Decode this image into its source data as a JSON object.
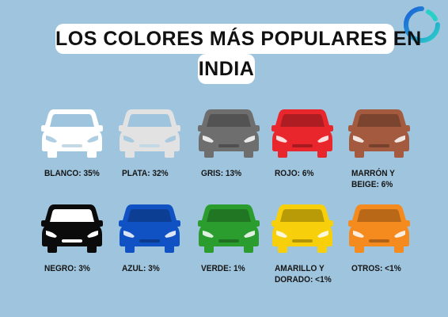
{
  "title_line1": "LOS COLORES MÁS POPULARES EN",
  "title_line2": "INDIA",
  "icons": {
    "logo": "ring-logo-icon",
    "car": "car-front-icon"
  },
  "chart_data": {
    "type": "pictograph",
    "title": "LOS COLORES MÁS POPULARES EN INDIA",
    "items": [
      {
        "label_lines": [
          "BLANCO: 35%"
        ],
        "value": 35,
        "color": "#ffffff"
      },
      {
        "label_lines": [
          "PLATA: 32%"
        ],
        "value": 32,
        "color": "#e2e2e2"
      },
      {
        "label_lines": [
          "GRIS: 13%"
        ],
        "value": 13,
        "color": "#6e6e6e"
      },
      {
        "label_lines": [
          "ROJO: 6%"
        ],
        "value": 6,
        "color": "#e8262c"
      },
      {
        "label_lines": [
          "MARRÓN Y",
          "BEIGE: 6%"
        ],
        "value": 6,
        "color": "#a35a3f"
      },
      {
        "label_lines": [
          "NEGRO: 3%"
        ],
        "value": 3,
        "color": "#0b0b0b"
      },
      {
        "label_lines": [
          "AZUL: 3%"
        ],
        "value": 3,
        "color": "#1052c4"
      },
      {
        "label_lines": [
          "VERDE: 1%"
        ],
        "value": 1,
        "color": "#2b9d2e"
      },
      {
        "label_lines": [
          "AMARILLO Y",
          "DORADO: <1%"
        ],
        "value": "<1",
        "color": "#f7cf0a"
      },
      {
        "label_lines": [
          "OTROS: <1%"
        ],
        "value": "<1",
        "color": "#f58a1f"
      }
    ]
  }
}
